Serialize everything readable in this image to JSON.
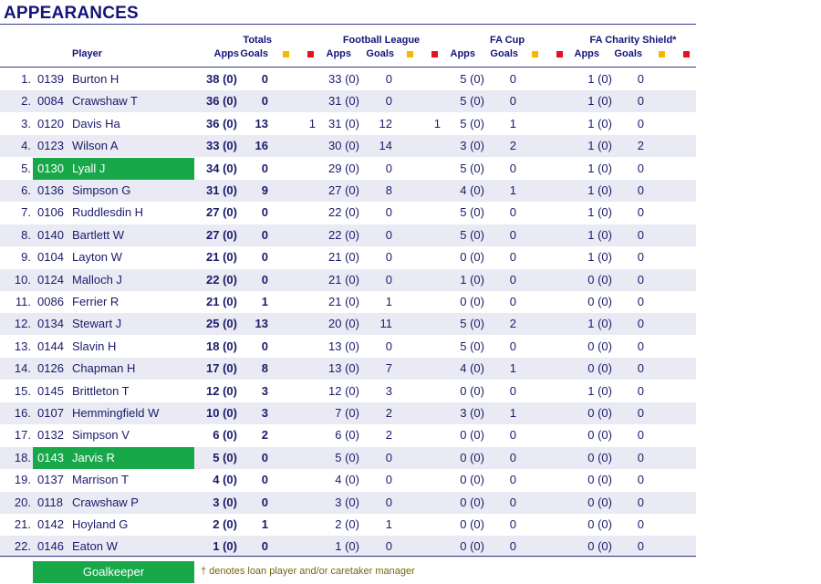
{
  "title": "APPEARANCES",
  "headers": {
    "player": "Player",
    "totals": "Totals",
    "football_league": "Football League",
    "fa_cup": "FA Cup",
    "charity_shield": "FA Charity Shield*",
    "apps": "Apps",
    "goals": "Goals"
  },
  "colors": {
    "goalkeeper": "#18a84a",
    "yellow_card": "#f5b800",
    "red_card": "#e8101e",
    "alt_row": "#e9eaf3",
    "text": "#1b1b6b"
  },
  "rows": [
    {
      "no": "1.",
      "code": "0139",
      "player": "Burton H",
      "gk": false,
      "tot_apps": "38 (0)",
      "tot_goals": "0",
      "fl_y": "",
      "fl_apps": "33 (0)",
      "fl_goals": "0",
      "fa_y": "",
      "fa_apps": "5 (0)",
      "fa_goals": "0",
      "cs_apps": "1 (0)",
      "cs_goals": "0"
    },
    {
      "no": "2.",
      "code": "0084",
      "player": "Crawshaw T",
      "gk": false,
      "tot_apps": "36 (0)",
      "tot_goals": "0",
      "fl_y": "",
      "fl_apps": "31 (0)",
      "fl_goals": "0",
      "fa_y": "",
      "fa_apps": "5 (0)",
      "fa_goals": "0",
      "cs_apps": "1 (0)",
      "cs_goals": "0"
    },
    {
      "no": "3.",
      "code": "0120",
      "player": "Davis Ha",
      "gk": false,
      "tot_apps": "36 (0)",
      "tot_goals": "13",
      "fl_y": "1",
      "fl_apps": "31 (0)",
      "fl_goals": "12",
      "fa_y": "1",
      "fa_apps": "5 (0)",
      "fa_goals": "1",
      "cs_apps": "1 (0)",
      "cs_goals": "0"
    },
    {
      "no": "4.",
      "code": "0123",
      "player": "Wilson A",
      "gk": false,
      "tot_apps": "33 (0)",
      "tot_goals": "16",
      "fl_y": "",
      "fl_apps": "30 (0)",
      "fl_goals": "14",
      "fa_y": "",
      "fa_apps": "3 (0)",
      "fa_goals": "2",
      "cs_apps": "1 (0)",
      "cs_goals": "2"
    },
    {
      "no": "5.",
      "code": "0130",
      "player": "Lyall J",
      "gk": true,
      "tot_apps": "34 (0)",
      "tot_goals": "0",
      "fl_y": "",
      "fl_apps": "29 (0)",
      "fl_goals": "0",
      "fa_y": "",
      "fa_apps": "5 (0)",
      "fa_goals": "0",
      "cs_apps": "1 (0)",
      "cs_goals": "0"
    },
    {
      "no": "6.",
      "code": "0136",
      "player": "Simpson G",
      "gk": false,
      "tot_apps": "31 (0)",
      "tot_goals": "9",
      "fl_y": "",
      "fl_apps": "27 (0)",
      "fl_goals": "8",
      "fa_y": "",
      "fa_apps": "4 (0)",
      "fa_goals": "1",
      "cs_apps": "1 (0)",
      "cs_goals": "0"
    },
    {
      "no": "7.",
      "code": "0106",
      "player": "Ruddlesdin H",
      "gk": false,
      "tot_apps": "27 (0)",
      "tot_goals": "0",
      "fl_y": "",
      "fl_apps": "22 (0)",
      "fl_goals": "0",
      "fa_y": "",
      "fa_apps": "5 (0)",
      "fa_goals": "0",
      "cs_apps": "1 (0)",
      "cs_goals": "0"
    },
    {
      "no": "8.",
      "code": "0140",
      "player": "Bartlett W",
      "gk": false,
      "tot_apps": "27 (0)",
      "tot_goals": "0",
      "fl_y": "",
      "fl_apps": "22 (0)",
      "fl_goals": "0",
      "fa_y": "",
      "fa_apps": "5 (0)",
      "fa_goals": "0",
      "cs_apps": "1 (0)",
      "cs_goals": "0"
    },
    {
      "no": "9.",
      "code": "0104",
      "player": "Layton W",
      "gk": false,
      "tot_apps": "21 (0)",
      "tot_goals": "0",
      "fl_y": "",
      "fl_apps": "21 (0)",
      "fl_goals": "0",
      "fa_y": "",
      "fa_apps": "0 (0)",
      "fa_goals": "0",
      "cs_apps": "1 (0)",
      "cs_goals": "0"
    },
    {
      "no": "10.",
      "code": "0124",
      "player": "Malloch J",
      "gk": false,
      "tot_apps": "22 (0)",
      "tot_goals": "0",
      "fl_y": "",
      "fl_apps": "21 (0)",
      "fl_goals": "0",
      "fa_y": "",
      "fa_apps": "1 (0)",
      "fa_goals": "0",
      "cs_apps": "0 (0)",
      "cs_goals": "0"
    },
    {
      "no": "11.",
      "code": "0086",
      "player": "Ferrier R",
      "gk": false,
      "tot_apps": "21 (0)",
      "tot_goals": "1",
      "fl_y": "",
      "fl_apps": "21 (0)",
      "fl_goals": "1",
      "fa_y": "",
      "fa_apps": "0 (0)",
      "fa_goals": "0",
      "cs_apps": "0 (0)",
      "cs_goals": "0"
    },
    {
      "no": "12.",
      "code": "0134",
      "player": "Stewart J",
      "gk": false,
      "tot_apps": "25 (0)",
      "tot_goals": "13",
      "fl_y": "",
      "fl_apps": "20 (0)",
      "fl_goals": "11",
      "fa_y": "",
      "fa_apps": "5 (0)",
      "fa_goals": "2",
      "cs_apps": "1 (0)",
      "cs_goals": "0"
    },
    {
      "no": "13.",
      "code": "0144",
      "player": "Slavin H",
      "gk": false,
      "tot_apps": "18 (0)",
      "tot_goals": "0",
      "fl_y": "",
      "fl_apps": "13 (0)",
      "fl_goals": "0",
      "fa_y": "",
      "fa_apps": "5 (0)",
      "fa_goals": "0",
      "cs_apps": "0 (0)",
      "cs_goals": "0"
    },
    {
      "no": "14.",
      "code": "0126",
      "player": "Chapman H",
      "gk": false,
      "tot_apps": "17 (0)",
      "tot_goals": "8",
      "fl_y": "",
      "fl_apps": "13 (0)",
      "fl_goals": "7",
      "fa_y": "",
      "fa_apps": "4 (0)",
      "fa_goals": "1",
      "cs_apps": "0 (0)",
      "cs_goals": "0"
    },
    {
      "no": "15.",
      "code": "0145",
      "player": "Brittleton T",
      "gk": false,
      "tot_apps": "12 (0)",
      "tot_goals": "3",
      "fl_y": "",
      "fl_apps": "12 (0)",
      "fl_goals": "3",
      "fa_y": "",
      "fa_apps": "0 (0)",
      "fa_goals": "0",
      "cs_apps": "1 (0)",
      "cs_goals": "0"
    },
    {
      "no": "16.",
      "code": "0107",
      "player": "Hemmingfield W",
      "gk": false,
      "tot_apps": "10 (0)",
      "tot_goals": "3",
      "fl_y": "",
      "fl_apps": "7 (0)",
      "fl_goals": "2",
      "fa_y": "",
      "fa_apps": "3 (0)",
      "fa_goals": "1",
      "cs_apps": "0 (0)",
      "cs_goals": "0"
    },
    {
      "no": "17.",
      "code": "0132",
      "player": "Simpson V",
      "gk": false,
      "tot_apps": "6 (0)",
      "tot_goals": "2",
      "fl_y": "",
      "fl_apps": "6 (0)",
      "fl_goals": "2",
      "fa_y": "",
      "fa_apps": "0 (0)",
      "fa_goals": "0",
      "cs_apps": "0 (0)",
      "cs_goals": "0"
    },
    {
      "no": "18.",
      "code": "0143",
      "player": "Jarvis R",
      "gk": true,
      "tot_apps": "5 (0)",
      "tot_goals": "0",
      "fl_y": "",
      "fl_apps": "5 (0)",
      "fl_goals": "0",
      "fa_y": "",
      "fa_apps": "0 (0)",
      "fa_goals": "0",
      "cs_apps": "0 (0)",
      "cs_goals": "0"
    },
    {
      "no": "19.",
      "code": "0137",
      "player": "Marrison T",
      "gk": false,
      "tot_apps": "4 (0)",
      "tot_goals": "0",
      "fl_y": "",
      "fl_apps": "4 (0)",
      "fl_goals": "0",
      "fa_y": "",
      "fa_apps": "0 (0)",
      "fa_goals": "0",
      "cs_apps": "0 (0)",
      "cs_goals": "0"
    },
    {
      "no": "20.",
      "code": "0118",
      "player": "Crawshaw P",
      "gk": false,
      "tot_apps": "3 (0)",
      "tot_goals": "0",
      "fl_y": "",
      "fl_apps": "3 (0)",
      "fl_goals": "0",
      "fa_y": "",
      "fa_apps": "0 (0)",
      "fa_goals": "0",
      "cs_apps": "0 (0)",
      "cs_goals": "0"
    },
    {
      "no": "21.",
      "code": "0142",
      "player": "Hoyland G",
      "gk": false,
      "tot_apps": "2 (0)",
      "tot_goals": "1",
      "fl_y": "",
      "fl_apps": "2 (0)",
      "fl_goals": "1",
      "fa_y": "",
      "fa_apps": "0 (0)",
      "fa_goals": "0",
      "cs_apps": "0 (0)",
      "cs_goals": "0"
    },
    {
      "no": "22.",
      "code": "0146",
      "player": "Eaton W",
      "gk": false,
      "tot_apps": "1 (0)",
      "tot_goals": "0",
      "fl_y": "",
      "fl_apps": "1 (0)",
      "fl_goals": "0",
      "fa_y": "",
      "fa_apps": "0 (0)",
      "fa_goals": "0",
      "cs_apps": "0 (0)",
      "cs_goals": "0"
    }
  ],
  "legend": {
    "goalkeeper": "Goalkeeper",
    "note": "† denotes loan player and/or caretaker manager"
  }
}
